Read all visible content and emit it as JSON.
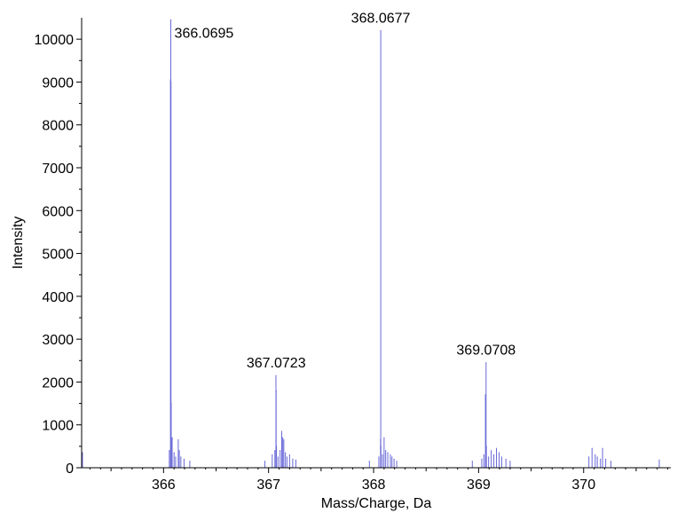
{
  "chart_data": {
    "type": "line",
    "title": "",
    "xlabel": "Mass/Charge, Da",
    "ylabel": "Intensity",
    "xlim": [
      365.22,
      370.83
    ],
    "ylim": [
      0,
      10500
    ],
    "x_ticks": [
      "366",
      "367",
      "368",
      "369",
      "370"
    ],
    "x_tick_values": [
      366,
      367,
      368,
      369,
      370
    ],
    "y_ticks": [
      "0",
      "1000",
      "2000",
      "3000",
      "4000",
      "5000",
      "6000",
      "7000",
      "8000",
      "9000",
      "10000"
    ],
    "y_tick_values": [
      0,
      1000,
      2000,
      3000,
      4000,
      5000,
      6000,
      7000,
      8000,
      9000,
      10000
    ],
    "grid": false,
    "legend": "none",
    "line_color": "#6a6ad8",
    "peak_labels": [
      {
        "x": 366.0695,
        "y": 10450,
        "text": "366.0695"
      },
      {
        "x": 367.0723,
        "y": 2150,
        "text": "367.0723"
      },
      {
        "x": 368.0677,
        "y": 10200,
        "text": "368.0677"
      },
      {
        "x": 369.0708,
        "y": 2450,
        "text": "369.0708"
      }
    ],
    "series": [
      {
        "x": [
          365.228,
          366.055,
          366.066,
          366.069,
          366.071,
          366.073,
          366.082,
          366.1,
          366.115,
          366.14,
          366.15,
          366.165,
          366.195,
          366.25,
          366.965,
          367.035,
          367.06,
          367.07,
          367.072,
          367.075,
          367.09,
          367.11,
          367.125,
          367.135,
          367.145,
          367.16,
          367.175,
          367.2,
          367.23,
          367.26,
          367.96,
          368.05,
          368.066,
          368.068,
          368.07,
          368.085,
          368.1,
          368.115,
          368.135,
          368.16,
          368.175,
          368.195,
          368.22,
          368.94,
          369.03,
          369.05,
          369.065,
          369.071,
          369.074,
          369.095,
          369.12,
          369.145,
          369.17,
          369.195,
          369.22,
          369.26,
          369.3,
          370.05,
          370.08,
          370.11,
          370.13,
          370.16,
          370.18,
          370.21,
          370.26,
          370.72
        ],
        "y": [
          350,
          400,
          9050,
          10450,
          9000,
          1500,
          700,
          350,
          250,
          650,
          400,
          250,
          200,
          150,
          150,
          300,
          400,
          2150,
          1800,
          500,
          250,
          400,
          850,
          700,
          650,
          350,
          250,
          300,
          200,
          180,
          150,
          250,
          650,
          10200,
          500,
          300,
          700,
          400,
          350,
          300,
          250,
          200,
          150,
          150,
          200,
          300,
          1700,
          2450,
          500,
          250,
          400,
          300,
          450,
          350,
          250,
          200,
          150,
          250,
          450,
          300,
          250,
          200,
          450,
          200,
          150,
          180
        ]
      }
    ]
  }
}
